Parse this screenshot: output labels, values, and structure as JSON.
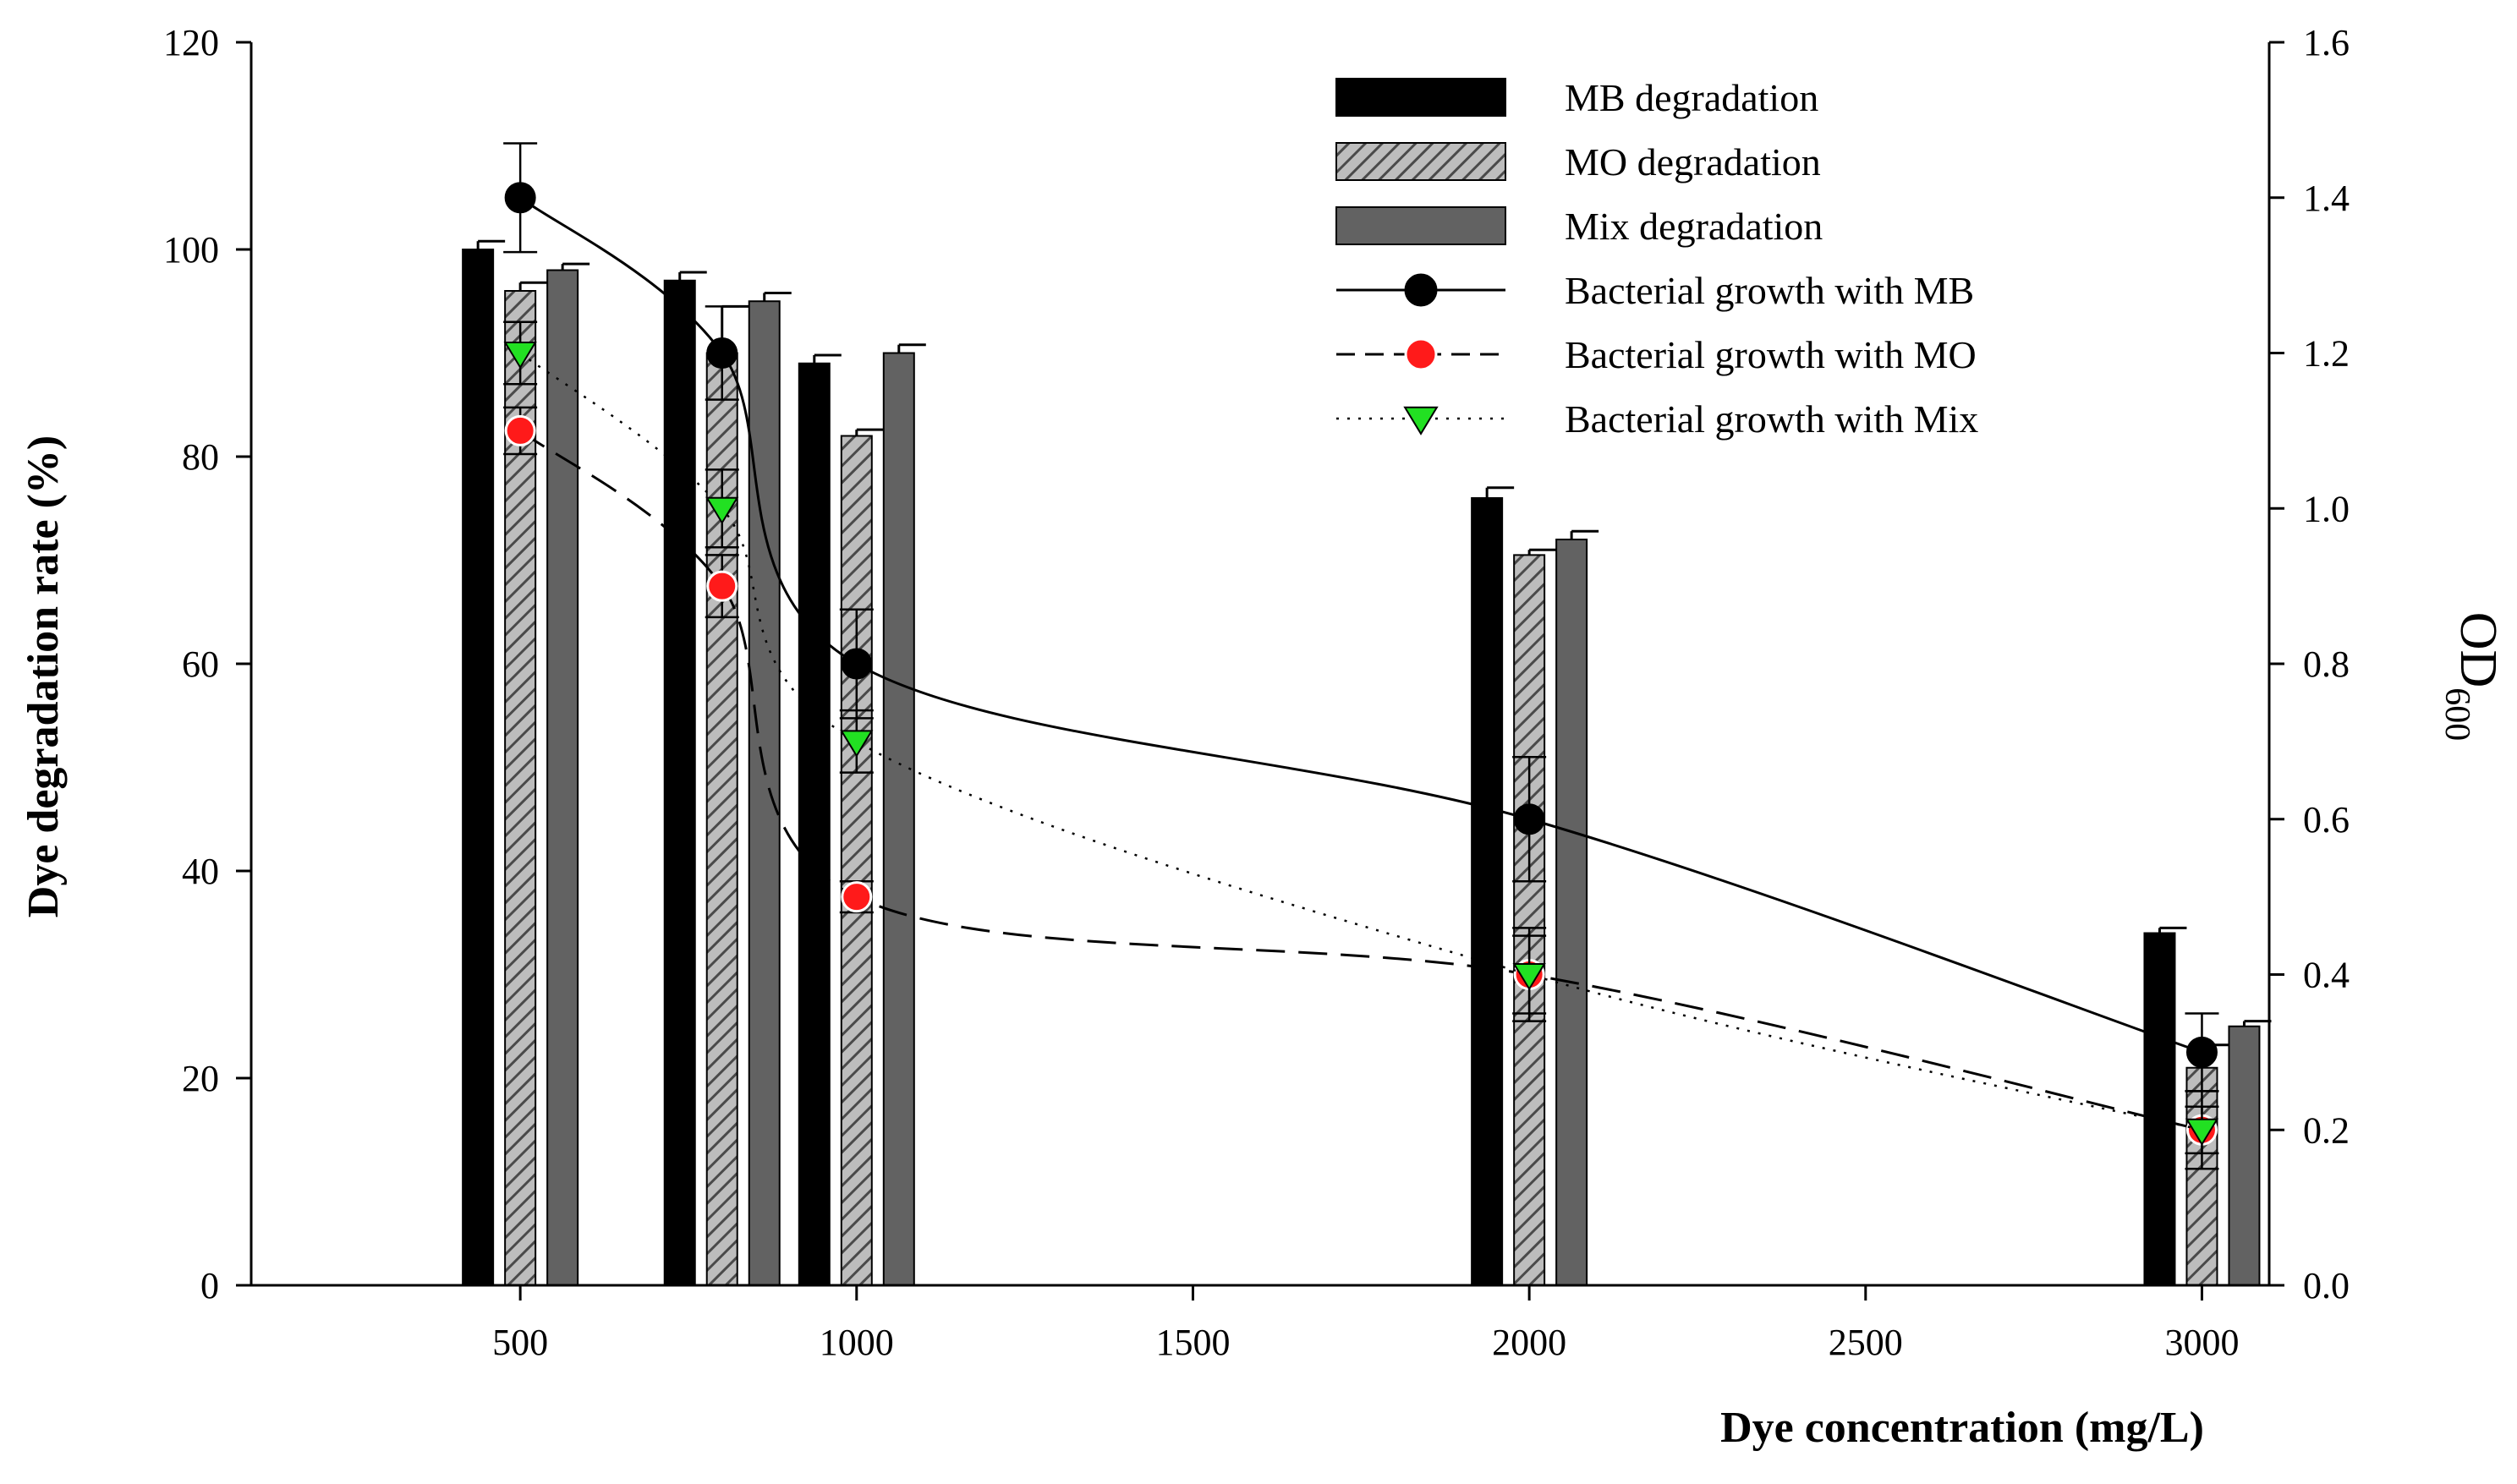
{
  "chart_data": {
    "type": "bar",
    "title": "",
    "xlabel": "Dye concentration (mg/L)",
    "ylabel": "Dye degradation rate (%)",
    "y2label": "OD",
    "y2label_sub": "600",
    "xlim": [
      100,
      3100
    ],
    "ylim": [
      0,
      120
    ],
    "y2lim": [
      0,
      1.6
    ],
    "x_ticks": [
      500,
      1000,
      1500,
      2000,
      2500,
      3000
    ],
    "y_ticks": [
      0,
      20,
      40,
      60,
      80,
      100,
      120
    ],
    "y2_ticks": [
      0.0,
      0.2,
      0.4,
      0.6,
      0.8,
      1.0,
      1.2,
      1.4,
      1.6
    ],
    "y2_tick_labels": [
      "0.0",
      "0.2",
      "0.4",
      "0.6",
      "0.8",
      "1.0",
      "1.2",
      "1.4",
      "1.6"
    ],
    "bar_groups": [
      {
        "x": 500,
        "center": 500
      },
      {
        "x": 800,
        "center": 800
      },
      {
        "x": 1000,
        "center": 1000
      },
      {
        "x": 2000,
        "center": 2000
      },
      {
        "x": 3000,
        "center": 3000
      }
    ],
    "bar_series": [
      {
        "name": "MB degradation",
        "color": "#000000",
        "pattern": "solid",
        "values": [
          100,
          97,
          89,
          76,
          34
        ],
        "errors": [
          0.8,
          0.8,
          0.8,
          1.0,
          0.5
        ]
      },
      {
        "name": "MO degradation",
        "color": "#a8a8a8",
        "pattern": "hatch",
        "values": [
          96,
          90,
          82,
          70.5,
          21
        ],
        "errors": [
          0.8,
          4.5,
          0.6,
          0.5,
          2.2
        ]
      },
      {
        "name": "Mix degradation",
        "color": "#626262",
        "pattern": "solid",
        "values": [
          98,
          95,
          90,
          72,
          25
        ],
        "errors": [
          0.6,
          0.8,
          0.8,
          0.8,
          0.5
        ]
      }
    ],
    "line_series": [
      {
        "name": "Bacterial growth with MB",
        "axis": "y2",
        "marker": "circle",
        "marker_color": "#000000",
        "line": "solid",
        "x": [
          500,
          800,
          1000,
          2000,
          3000
        ],
        "y": [
          1.4,
          1.2,
          0.8,
          0.6,
          0.3
        ],
        "errors": [
          0.07,
          0.06,
          0.07,
          0.08,
          0.05
        ]
      },
      {
        "name": "Bacterial growth with MO",
        "axis": "y2",
        "marker": "circle",
        "marker_color": "#ff1a1a",
        "line": "dashed",
        "x": [
          500,
          800,
          1000,
          2000,
          3000
        ],
        "y": [
          1.1,
          0.9,
          0.5,
          0.4,
          0.2
        ],
        "errors": [
          0.03,
          0.04,
          0.02,
          0.06,
          0.05
        ]
      },
      {
        "name": "Bacterial growth with Mix",
        "axis": "y2",
        "marker": "triangle-down",
        "marker_color": "#22e022",
        "line": "dotted",
        "x": [
          500,
          800,
          1000,
          2000,
          3000
        ],
        "y": [
          1.2,
          1.0,
          0.7,
          0.4,
          0.2
        ],
        "errors": [
          0.04,
          0.05,
          0.04,
          0.05,
          0.03
        ]
      }
    ],
    "legend_position": "top-right",
    "grid": false
  }
}
